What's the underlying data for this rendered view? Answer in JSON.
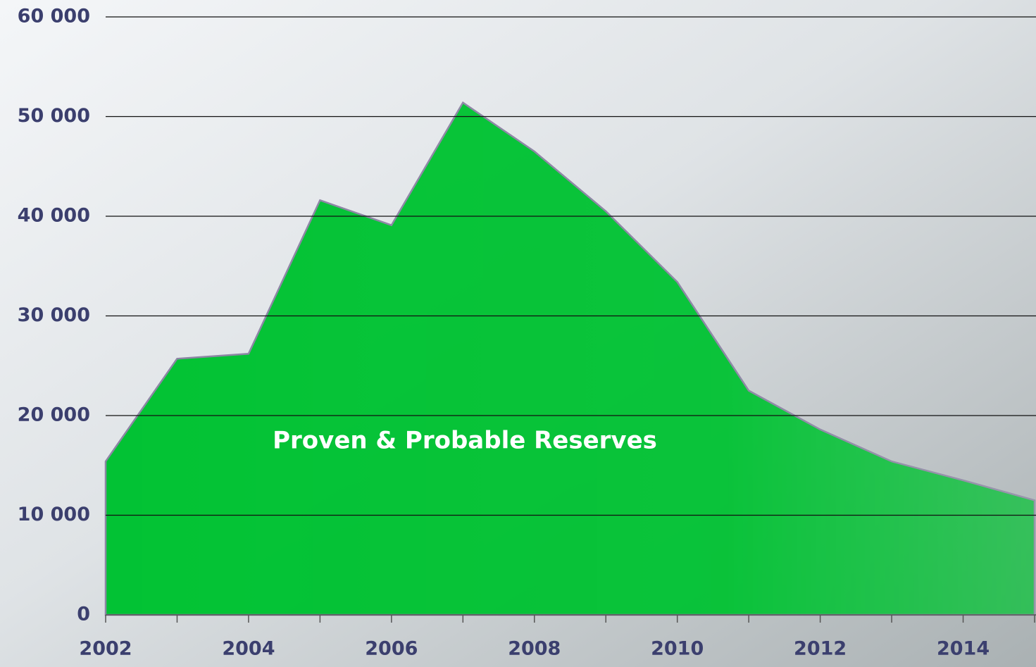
{
  "chart_data": {
    "type": "area",
    "x": [
      2002,
      2003,
      2004,
      2005,
      2006,
      2007,
      2008,
      2009,
      2010,
      2011,
      2012,
      2013,
      2014,
      2015
    ],
    "series": [
      {
        "name": "Proven & Probable Reserves",
        "color": "#00c232",
        "values": [
          15400,
          25700,
          26200,
          41600,
          39100,
          51400,
          46500,
          40500,
          33400,
          22500,
          18600,
          15400,
          13500,
          11500
        ]
      }
    ],
    "xlim": [
      2002,
      2015
    ],
    "xticks": [
      2002,
      2004,
      2006,
      2008,
      2010,
      2012,
      2014
    ],
    "ylim": [
      0,
      60000
    ],
    "yticks": [
      0,
      {
        "value": 10000,
        "label": "10 000"
      },
      {
        "value": 20000,
        "label": "20 000"
      },
      {
        "value": 30000,
        "label": "30 000"
      },
      {
        "value": 40000,
        "label": "40 000"
      },
      {
        "value": 50000,
        "label": "50 000"
      },
      {
        "value": 60000,
        "label": "60 000"
      }
    ],
    "grid": true
  }
}
